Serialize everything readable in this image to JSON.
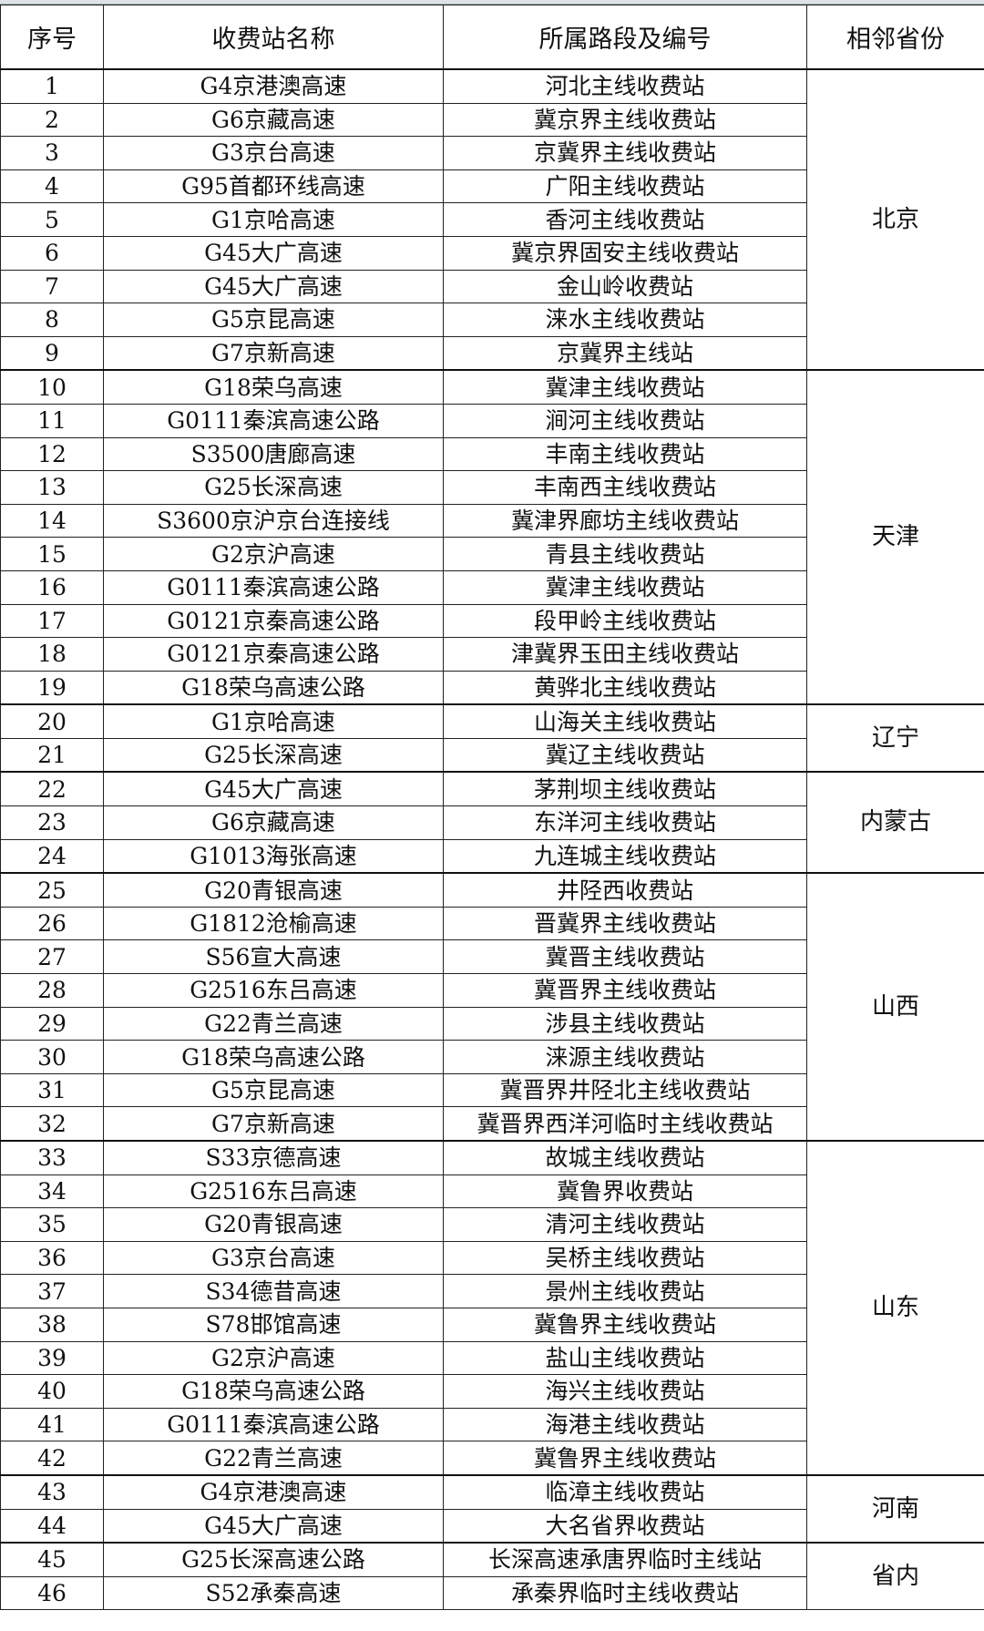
{
  "headers": [
    "序号",
    "收费站名称",
    "所属路段及编号",
    "相邻省份"
  ],
  "groups": [
    {
      "province": "北京",
      "rows": [
        [
          "1",
          "G4京港澳高速",
          "河北主线收费站"
        ],
        [
          "2",
          "G6京藏高速",
          "冀京界主线收费站"
        ],
        [
          "3",
          "G3京台高速",
          "京冀界主线收费站"
        ],
        [
          "4",
          "G95首都环线高速",
          "广阳主线收费站"
        ],
        [
          "5",
          "G1京哈高速",
          "香河主线收费站"
        ],
        [
          "6",
          "G45大广高速",
          "冀京界固安主线收费站"
        ],
        [
          "7",
          "G45大广高速",
          "金山岭收费站"
        ],
        [
          "8",
          "G5京昆高速",
          "涞水主线收费站"
        ],
        [
          "9",
          "G7京新高速",
          "京冀界主线站"
        ]
      ]
    },
    {
      "province": "天津",
      "rows": [
        [
          "10",
          "G18荣乌高速",
          "冀津主线收费站"
        ],
        [
          "11",
          "G0111秦滨高速公路",
          "涧河主线收费站"
        ],
        [
          "12",
          "S3500唐廊高速",
          "丰南主线收费站"
        ],
        [
          "13",
          "G25长深高速",
          "丰南西主线收费站"
        ],
        [
          "14",
          "S3600京沪京台连接线",
          "冀津界廊坊主线收费站"
        ],
        [
          "15",
          "G2京沪高速",
          "青县主线收费站"
        ],
        [
          "16",
          "G0111秦滨高速公路",
          "冀津主线收费站"
        ],
        [
          "17",
          "G0121京秦高速公路",
          "段甲岭主线收费站"
        ],
        [
          "18",
          "G0121京秦高速公路",
          "津冀界玉田主线收费站"
        ],
        [
          "19",
          "G18荣乌高速公路",
          "黄骅北主线收费站"
        ]
      ]
    },
    {
      "province": "辽宁",
      "rows": [
        [
          "20",
          "G1京哈高速",
          "山海关主线收费站"
        ],
        [
          "21",
          "G25长深高速",
          "冀辽主线收费站"
        ]
      ]
    },
    {
      "province": "内蒙古",
      "rows": [
        [
          "22",
          "G45大广高速",
          "茅荆坝主线收费站"
        ],
        [
          "23",
          "G6京藏高速",
          "东洋河主线收费站"
        ],
        [
          "24",
          "G1013海张高速",
          "九连城主线收费站"
        ]
      ]
    },
    {
      "province": "山西",
      "rows": [
        [
          "25",
          "G20青银高速",
          "井陉西收费站"
        ],
        [
          "26",
          "G1812沧榆高速",
          "晋冀界主线收费站"
        ],
        [
          "27",
          "S56宣大高速",
          "冀晋主线收费站"
        ],
        [
          "28",
          "G2516东吕高速",
          "冀晋界主线收费站"
        ],
        [
          "29",
          "G22青兰高速",
          "涉县主线收费站"
        ],
        [
          "30",
          "G18荣乌高速公路",
          "涞源主线收费站"
        ],
        [
          "31",
          "G5京昆高速",
          "冀晋界井陉北主线收费站"
        ],
        [
          "32",
          "G7京新高速",
          "冀晋界西洋河临时主线收费站"
        ]
      ]
    },
    {
      "province": "山东",
      "rows": [
        [
          "33",
          "S33京德高速",
          "故城主线收费站"
        ],
        [
          "34",
          "G2516东吕高速",
          "冀鲁界收费站"
        ],
        [
          "35",
          "G20青银高速",
          "清河主线收费站"
        ],
        [
          "36",
          "G3京台高速",
          "吴桥主线收费站"
        ],
        [
          "37",
          "S34德昔高速",
          "景州主线收费站"
        ],
        [
          "38",
          "S78邯馆高速",
          "冀鲁界主线收费站"
        ],
        [
          "39",
          "G2京沪高速",
          "盐山主线收费站"
        ],
        [
          "40",
          "G18荣乌高速公路",
          "海兴主线收费站"
        ],
        [
          "41",
          "G0111秦滨高速公路",
          "海港主线收费站"
        ],
        [
          "42",
          "G22青兰高速",
          "冀鲁界主线收费站"
        ]
      ]
    },
    {
      "province": "河南",
      "rows": [
        [
          "43",
          "G4京港澳高速",
          "临漳主线收费站"
        ],
        [
          "44",
          "G45大广高速",
          "大名省界收费站"
        ]
      ]
    },
    {
      "province": "省内",
      "rows": [
        [
          "45",
          "G25长深高速公路",
          "长深高速承唐界临时主线站"
        ],
        [
          "46",
          "S52承秦高速",
          "承秦界临时主线收费站"
        ]
      ]
    }
  ]
}
